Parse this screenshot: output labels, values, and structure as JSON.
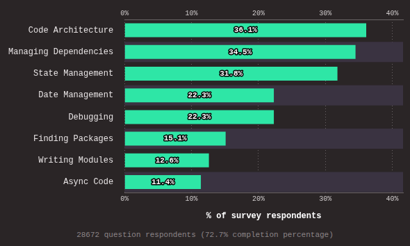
{
  "chart_data": {
    "type": "bar",
    "orientation": "horizontal",
    "categories": [
      "Code Architecture",
      "Managing Dependencies",
      "State Management",
      "Date Management",
      "Debugging",
      "Finding Packages",
      "Writing Modules",
      "Async Code"
    ],
    "values": [
      36.1,
      34.5,
      31.8,
      22.3,
      22.3,
      15.1,
      12.6,
      11.4
    ],
    "value_labels": [
      "36.1%",
      "34.5%",
      "31.8%",
      "22.3%",
      "22.3%",
      "15.1%",
      "12.6%",
      "11.4%"
    ],
    "data_labels": true,
    "color": "#2ee6a6",
    "xlabel": "% of survey respondents",
    "xlim": [
      0,
      41.6
    ],
    "xticks": [
      {
        "value": 0,
        "label": "0%"
      },
      {
        "value": 10,
        "label": "10%"
      },
      {
        "value": 20,
        "label": "20%"
      },
      {
        "value": 30,
        "label": "30%"
      },
      {
        "value": 40,
        "label": "40%"
      }
    ],
    "grid": true,
    "annotations": [
      "28672 question respondents (72.7% completion percentage)"
    ]
  }
}
